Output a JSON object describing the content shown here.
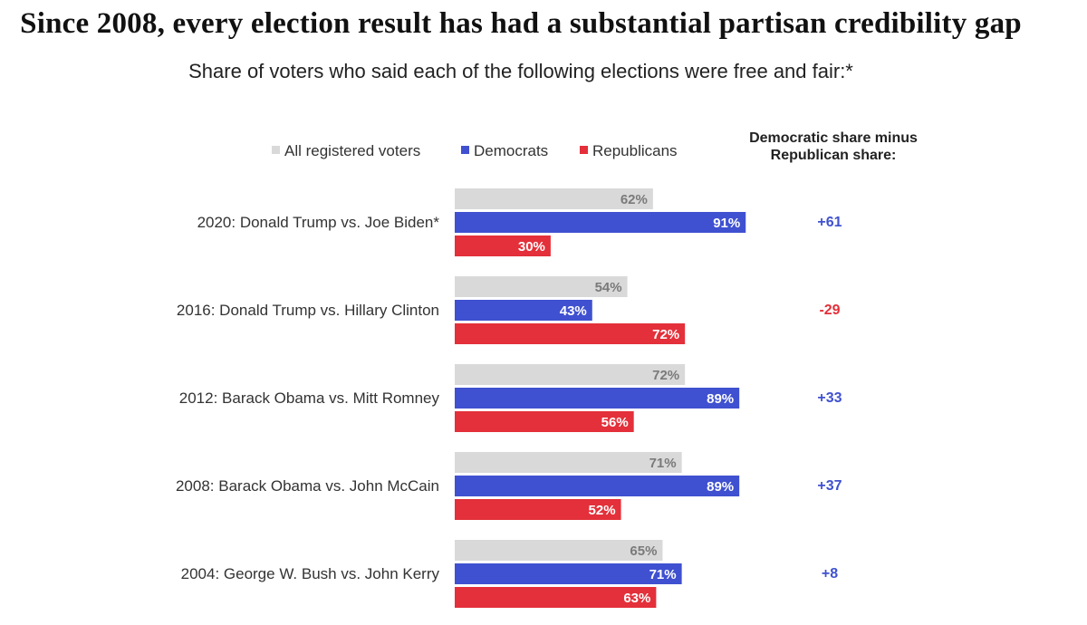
{
  "title": "Since 2008, every election result has had a substantial partisan credibility gap",
  "subtitle": "Share of voters who said each of the following elections were free and fair:*",
  "legend": [
    {
      "label": "All registered voters",
      "color": "#d9d9d9"
    },
    {
      "label": "Democrats",
      "color": "#3f51d0"
    },
    {
      "label": "Republicans",
      "color": "#e3303a"
    }
  ],
  "gap_header": [
    "Democratic share minus",
    "Republican share:"
  ],
  "colors": {
    "all": "#d9d9d9",
    "dem": "#3f51d0",
    "rep": "#e3303a",
    "all_text": "#7a7a7a",
    "bar_text": "#ffffff",
    "gap_pos": "#3f51d0",
    "gap_neg": "#e3303a"
  },
  "chart_data": {
    "type": "bar",
    "orientation": "horizontal",
    "title": "Since 2008, every election result has had a substantial partisan credibility gap",
    "subtitle": "Share of voters who said each of the following elections were free and fair:*",
    "categories": [
      "2020: Donald Trump vs. Joe Biden*",
      "2016: Donald Trump vs. Hillary Clinton",
      "2012: Barack Obama vs. Mitt Romney",
      "2008: Barack Obama vs. John McCain",
      "2004: George W. Bush vs. John Kerry"
    ],
    "series": [
      {
        "name": "All registered voters",
        "values": [
          62,
          54,
          72,
          71,
          65
        ],
        "labels": [
          "62%",
          "54%",
          "72%",
          "71%",
          "65%"
        ]
      },
      {
        "name": "Democrats",
        "values": [
          91,
          43,
          89,
          89,
          71
        ],
        "labels": [
          "91%",
          "43%",
          "89%",
          "89%",
          "71%"
        ]
      },
      {
        "name": "Republicans",
        "values": [
          30,
          72,
          56,
          52,
          63
        ],
        "labels": [
          "30%",
          "72%",
          "56%",
          "52%",
          "63%"
        ]
      }
    ],
    "gap": {
      "name": "Democratic share minus Republican share",
      "values": [
        61,
        -29,
        33,
        37,
        8
      ],
      "labels": [
        "+61",
        "-29",
        "+33",
        "+37",
        "+8"
      ]
    },
    "xlim": [
      0,
      100
    ],
    "grid": false,
    "legend": "top"
  }
}
